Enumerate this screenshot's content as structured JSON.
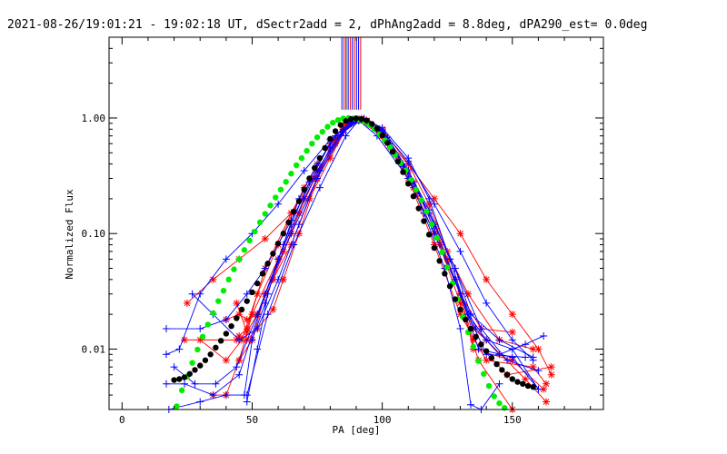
{
  "chart_data": {
    "type": "line",
    "title": "2021-08-26/19:01:21 - 19:02:18 UT, dSectr2add = 2, dPhAng2add = 8.8deg, dPA290_est=  0.0deg",
    "xlabel": "PA [deg]",
    "ylabel": "Normalized Flux",
    "xlim": [
      -5,
      185
    ],
    "ylim": [
      0.003,
      5
    ],
    "yscale": "log",
    "grid": false,
    "x_ticks": [
      {
        "value": 0,
        "label": "0"
      },
      {
        "value": 50,
        "label": "50"
      },
      {
        "value": 100,
        "label": "100"
      },
      {
        "value": 150,
        "label": "150"
      }
    ],
    "y_ticks": [
      {
        "value": 0.01,
        "label": "0.01"
      },
      {
        "value": 0.1,
        "label": "0.10"
      },
      {
        "value": 1,
        "label": "1.00"
      }
    ],
    "vertical_markers": {
      "x": [
        84.5,
        85.3,
        86.1,
        86.9,
        87.7,
        88.5,
        89.3,
        90.1,
        90.9,
        91.7
      ],
      "y_from": 1.18,
      "colors": [
        "#0000ff",
        "#ff0000",
        "#000000",
        "#0000ff",
        "#ff0000",
        "#0000ff",
        "#ff0000",
        "#0000ff",
        "#0000ff",
        "#ff0000"
      ]
    },
    "series": [
      {
        "color": "#00ee00",
        "marker": "circle",
        "x": [
          21,
          23,
          25,
          27,
          29,
          31,
          33,
          35,
          37,
          39,
          41,
          43,
          45,
          47,
          49,
          51,
          53,
          55,
          57,
          59,
          61,
          63,
          65,
          67,
          69,
          71,
          73,
          75,
          77,
          79,
          81,
          83,
          85,
          87,
          89,
          91,
          93,
          95,
          97,
          99,
          101,
          103,
          105,
          107,
          109,
          111,
          113,
          115,
          117,
          119,
          121,
          123,
          125,
          127,
          129,
          131,
          133,
          135,
          137,
          139,
          141,
          143,
          145,
          147
        ],
        "y": [
          0.0032,
          0.0044,
          0.0058,
          0.0076,
          0.0099,
          0.0128,
          0.0163,
          0.0205,
          0.026,
          0.032,
          0.04,
          0.049,
          0.06,
          0.072,
          0.087,
          0.104,
          0.125,
          0.148,
          0.175,
          0.205,
          0.24,
          0.28,
          0.33,
          0.39,
          0.45,
          0.52,
          0.6,
          0.68,
          0.76,
          0.84,
          0.91,
          0.96,
          0.99,
          1.0,
          0.99,
          0.97,
          0.93,
          0.87,
          0.8,
          0.72,
          0.64,
          0.56,
          0.48,
          0.41,
          0.35,
          0.29,
          0.24,
          0.195,
          0.155,
          0.12,
          0.092,
          0.069,
          0.051,
          0.037,
          0.027,
          0.019,
          0.014,
          0.0105,
          0.0079,
          0.0061,
          0.0048,
          0.0039,
          0.0034,
          0.0031
        ]
      },
      {
        "color": "#000000",
        "marker": "circle",
        "x": [
          20,
          22,
          24,
          26,
          28,
          30,
          32,
          34,
          36,
          38,
          40,
          42,
          44,
          46,
          48,
          50,
          52,
          54,
          56,
          58,
          60,
          62,
          64,
          66,
          68,
          70,
          72,
          74,
          76,
          78,
          80,
          82,
          84,
          86,
          88,
          90,
          92,
          94,
          96,
          98,
          100,
          102,
          104,
          106,
          108,
          110,
          112,
          114,
          116,
          118,
          120,
          122,
          124,
          126,
          128,
          130,
          132,
          134,
          136,
          138,
          140,
          142,
          144,
          146,
          148,
          150,
          152,
          154,
          156,
          158
        ],
        "y": [
          0.0054,
          0.0055,
          0.0057,
          0.0061,
          0.0066,
          0.0072,
          0.008,
          0.009,
          0.0103,
          0.0118,
          0.0136,
          0.0158,
          0.0185,
          0.022,
          0.026,
          0.031,
          0.037,
          0.045,
          0.055,
          0.067,
          0.082,
          0.1,
          0.125,
          0.155,
          0.19,
          0.24,
          0.3,
          0.37,
          0.45,
          0.55,
          0.66,
          0.77,
          0.87,
          0.94,
          0.98,
          0.99,
          0.98,
          0.95,
          0.89,
          0.81,
          0.71,
          0.61,
          0.51,
          0.42,
          0.34,
          0.27,
          0.21,
          0.165,
          0.128,
          0.098,
          0.075,
          0.058,
          0.045,
          0.035,
          0.027,
          0.022,
          0.018,
          0.015,
          0.0128,
          0.011,
          0.0096,
          0.0084,
          0.0074,
          0.0066,
          0.006,
          0.0055,
          0.0052,
          0.005,
          0.0048,
          0.0047
        ]
      },
      {
        "color": "#ff0000",
        "marker": "star",
        "x": [
          25,
          35,
          45,
          55,
          65,
          75,
          85,
          91,
          100,
          110,
          120,
          130,
          140,
          150,
          160,
          165
        ],
        "y": [
          0.025,
          0.04,
          0.06,
          0.09,
          0.15,
          0.35,
          0.8,
          0.95,
          0.7,
          0.4,
          0.2,
          0.1,
          0.04,
          0.02,
          0.01,
          0.006
        ]
      },
      {
        "color": "#ff0000",
        "marker": "star",
        "x": [
          24,
          44,
          45,
          48,
          55,
          65,
          75,
          85,
          91,
          100,
          110,
          120,
          130,
          135,
          150,
          162
        ],
        "y": [
          0.012,
          0.012,
          0.013,
          0.015,
          0.05,
          0.15,
          0.4,
          0.85,
          0.98,
          0.75,
          0.35,
          0.12,
          0.03,
          0.01,
          0.008,
          0.0045
        ]
      },
      {
        "color": "#ff0000",
        "marker": "star",
        "x": [
          35,
          40,
          45,
          50,
          60,
          70,
          80,
          87,
          92,
          100,
          110,
          120,
          130,
          140,
          158,
          163
        ],
        "y": [
          0.004,
          0.004,
          0.008,
          0.02,
          0.06,
          0.2,
          0.55,
          0.9,
          0.97,
          0.7,
          0.3,
          0.08,
          0.02,
          0.008,
          0.007,
          0.005
        ]
      },
      {
        "color": "#ff0000",
        "marker": "star",
        "x": [
          40,
          45,
          48,
          52,
          58,
          65,
          75,
          86,
          92,
          100,
          112,
          125,
          135,
          140,
          155,
          163
        ],
        "y": [
          0.018,
          0.02,
          0.018,
          0.02,
          0.04,
          0.1,
          0.3,
          0.85,
          0.99,
          0.75,
          0.28,
          0.06,
          0.015,
          0.012,
          0.0055,
          0.0035
        ]
      },
      {
        "color": "#ff0000",
        "marker": "star",
        "x": [
          44,
          48,
          52,
          58,
          65,
          72,
          80,
          87,
          92,
          100,
          112,
          122,
          130,
          138,
          150
        ],
        "y": [
          0.025,
          0.014,
          0.02,
          0.04,
          0.08,
          0.2,
          0.45,
          0.88,
          0.96,
          0.7,
          0.25,
          0.08,
          0.03,
          0.015,
          0.014
        ]
      },
      {
        "color": "#ff0000",
        "marker": "star",
        "x": [
          48,
          52,
          58,
          62,
          68,
          75,
          82,
          88,
          93,
          100,
          110,
          118,
          125,
          133,
          145,
          158
        ],
        "y": [
          0.012,
          0.015,
          0.022,
          0.04,
          0.1,
          0.3,
          0.65,
          0.92,
          0.97,
          0.8,
          0.4,
          0.18,
          0.07,
          0.03,
          0.012,
          0.01
        ]
      },
      {
        "color": "#ff0000",
        "marker": "star",
        "x": [
          45,
          50,
          55,
          62,
          68,
          74,
          82,
          89,
          94,
          102,
          112,
          120,
          128,
          135,
          148,
          165
        ],
        "y": [
          0.008,
          0.012,
          0.03,
          0.07,
          0.15,
          0.3,
          0.6,
          0.95,
          0.95,
          0.6,
          0.25,
          0.1,
          0.04,
          0.012,
          0.006,
          0.007
        ]
      },
      {
        "color": "#ff0000",
        "marker": "star",
        "x": [
          30,
          40,
          46,
          52,
          60,
          70,
          80,
          88,
          94,
          103,
          113,
          122,
          130,
          137,
          150
        ],
        "y": [
          0.012,
          0.008,
          0.012,
          0.03,
          0.08,
          0.25,
          0.6,
          0.9,
          0.92,
          0.55,
          0.22,
          0.08,
          0.025,
          0.008,
          0.003
        ]
      },
      {
        "color": "#0000ff",
        "marker": "cross",
        "x": [
          17,
          30,
          40,
          48,
          55,
          65,
          75,
          85,
          90,
          98,
          108,
          118,
          128,
          138,
          148,
          160
        ],
        "y": [
          0.015,
          0.015,
          0.018,
          0.03,
          0.05,
          0.13,
          0.35,
          0.8,
          0.98,
          0.8,
          0.38,
          0.15,
          0.05,
          0.015,
          0.008,
          0.0065
        ]
      },
      {
        "color": "#0000ff",
        "marker": "cross",
        "x": [
          17,
          24,
          35,
          45,
          55,
          65,
          75,
          85,
          91,
          98,
          110,
          120,
          130,
          137,
          150,
          160
        ],
        "y": [
          0.005,
          0.005,
          0.004,
          0.006,
          0.03,
          0.1,
          0.3,
          0.75,
          0.95,
          0.7,
          0.3,
          0.1,
          0.03,
          0.01,
          0.0085,
          0.0045
        ]
      },
      {
        "color": "#0000ff",
        "marker": "cross",
        "x": [
          18,
          30,
          40,
          48,
          56,
          66,
          76,
          86,
          91,
          99,
          110,
          120,
          128,
          134,
          145,
          158
        ],
        "y": [
          0.003,
          0.0035,
          0.004,
          0.004,
          0.02,
          0.08,
          0.25,
          0.7,
          0.96,
          0.8,
          0.35,
          0.12,
          0.05,
          0.02,
          0.012,
          0.0085
        ]
      },
      {
        "color": "#0000ff",
        "marker": "cross",
        "x": [
          17,
          22,
          30,
          40,
          50,
          60,
          70,
          80,
          88,
          93,
          100,
          110,
          120,
          130,
          140,
          150,
          158
        ],
        "y": [
          0.009,
          0.01,
          0.03,
          0.06,
          0.1,
          0.18,
          0.35,
          0.65,
          0.92,
          0.98,
          0.78,
          0.42,
          0.18,
          0.07,
          0.025,
          0.012,
          0.008
        ]
      },
      {
        "color": "#0000ff",
        "marker": "cross",
        "x": [
          20,
          28,
          36,
          44,
          52,
          60,
          70,
          80,
          88,
          93,
          100,
          110,
          118,
          126,
          133,
          140,
          155
        ],
        "y": [
          0.007,
          0.005,
          0.005,
          0.007,
          0.02,
          0.06,
          0.2,
          0.55,
          0.9,
          0.99,
          0.82,
          0.45,
          0.2,
          0.06,
          0.02,
          0.009,
          0.0085
        ]
      },
      {
        "color": "#0000ff",
        "marker": "cross",
        "x": [
          48,
          52,
          56,
          62,
          68,
          75,
          82,
          88,
          93,
          100,
          108,
          116,
          124,
          130,
          134,
          138,
          145
        ],
        "y": [
          0.0035,
          0.01,
          0.03,
          0.08,
          0.2,
          0.4,
          0.7,
          0.92,
          0.96,
          0.75,
          0.4,
          0.15,
          0.05,
          0.015,
          0.0033,
          0.003,
          0.005
        ]
      },
      {
        "color": "#0000ff",
        "marker": "cross",
        "x": [
          47,
          50,
          55,
          60,
          65,
          72,
          80,
          88,
          94,
          102,
          110,
          118,
          126,
          133,
          140,
          150,
          160
        ],
        "y": [
          0.004,
          0.012,
          0.025,
          0.06,
          0.12,
          0.28,
          0.6,
          0.9,
          0.94,
          0.68,
          0.35,
          0.16,
          0.06,
          0.02,
          0.012,
          0.01,
          0.0045
        ]
      },
      {
        "color": "#0000ff",
        "marker": "cross",
        "x": [
          27,
          35,
          45,
          52,
          60,
          68,
          76,
          84,
          90,
          95,
          103,
          112,
          120,
          128,
          136,
          145,
          155,
          162
        ],
        "y": [
          0.03,
          0.02,
          0.012,
          0.015,
          0.04,
          0.12,
          0.35,
          0.72,
          0.95,
          0.93,
          0.6,
          0.28,
          0.11,
          0.04,
          0.015,
          0.009,
          0.011,
          0.013
        ]
      }
    ]
  }
}
